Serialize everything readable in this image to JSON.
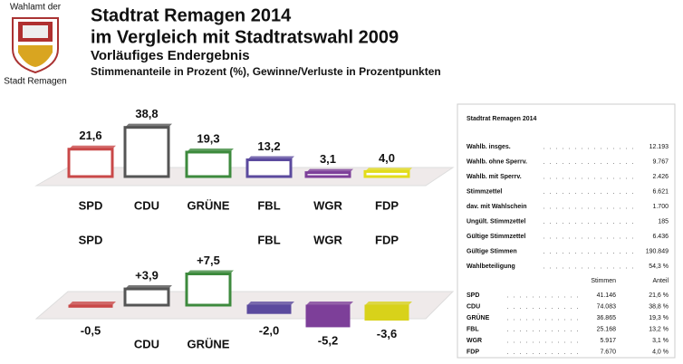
{
  "logo": {
    "top": "Wahlamt der",
    "bottom": "Stadt Remagen"
  },
  "header": {
    "title": "Stadtrat Remagen 2014",
    "subtitle": "im Vergleich mit Stadtratswahl 2009",
    "status": "Vorläufiges Endergebnis",
    "note": "Stimmenanteile in Prozent (%), Gewinne/Verluste in Prozentpunkten"
  },
  "chart_data": [
    {
      "type": "bar",
      "categories": [
        "SPD",
        "CDU",
        "GRÜNE",
        "FBL",
        "WGR",
        "FDP"
      ],
      "values": [
        21.6,
        38.8,
        19.3,
        13.2,
        3.1,
        4.0
      ],
      "value_labels": [
        "21,6",
        "38,8",
        "19,3",
        "13,2",
        "3,1",
        "4,0"
      ],
      "colors": [
        "#c94848",
        "#555555",
        "#3d8a3d",
        "#5b4a9e",
        "#7d3f99",
        "#e2dc1a"
      ]
    },
    {
      "type": "bar",
      "categories": [
        "SPD",
        "CDU",
        "GRÜNE",
        "FBL",
        "WGR",
        "FDP"
      ],
      "values": [
        -0.5,
        3.9,
        7.5,
        -2.0,
        -5.2,
        -3.6
      ],
      "value_labels": [
        "-0,5",
        "+3,9",
        "+7,5",
        "-2,0",
        "-5,2",
        "-3,6"
      ],
      "colors": [
        "#c94848",
        "#555555",
        "#3d8a3d",
        "#5b4a9e",
        "#7d3f99",
        "#d8d21a"
      ]
    }
  ],
  "table": {
    "title": "Stadtrat Remagen 2014",
    "rows": [
      [
        "Wahlb. insges.",
        "12.193"
      ],
      [
        "Wahlb. ohne Sperrv.",
        "9.767"
      ],
      [
        "Wahlb. mit Sperrv.",
        "2.426"
      ],
      [
        "Stimmzettel",
        "6.621"
      ],
      [
        "dav. mit Wahlschein",
        "1.700"
      ],
      [
        "Ungült. Stimmzettel",
        "185"
      ],
      [
        "Gültige Stimmzettel",
        "6.436"
      ],
      [
        "Gültige Stimmen",
        "190.849"
      ],
      [
        "Wahlbeteiligung",
        "54,3 %"
      ]
    ],
    "party_header": [
      "Stimmen",
      "Anteil"
    ],
    "party_rows": [
      [
        "SPD",
        "41.146",
        "21,6 %"
      ],
      [
        "CDU",
        "74.083",
        "38,8 %"
      ],
      [
        "GRÜNE",
        "36.865",
        "19,3 %"
      ],
      [
        "FBL",
        "25.168",
        "13,2 %"
      ],
      [
        "WGR",
        "5.917",
        "3,1 %"
      ],
      [
        "FDP",
        "7.670",
        "4,0 %"
      ]
    ]
  }
}
